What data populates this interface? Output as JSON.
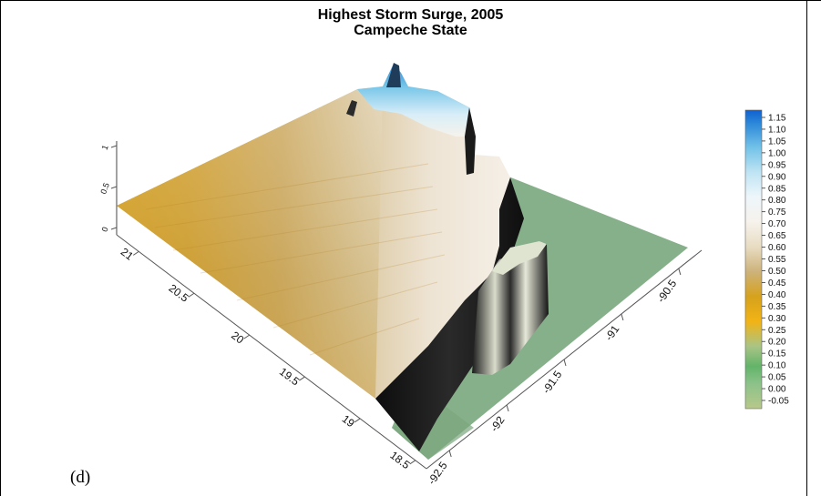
{
  "chart_data": {
    "type": "surface",
    "title": "Highest Storm Surge, 2005",
    "subtitle": "Campeche State",
    "panel_label": "(d)",
    "x_axis": {
      "ticks": [
        "-92.5",
        "-92",
        "-91.5",
        "-91",
        "-90.5"
      ],
      "range": [
        -92.7,
        -90.3
      ]
    },
    "y_axis": {
      "ticks": [
        "18.5",
        "19",
        "19.5",
        "20",
        "20.5",
        "21"
      ],
      "range": [
        18.4,
        21.2
      ]
    },
    "z_axis": {
      "ticks": [
        "0",
        "0.5",
        "1"
      ],
      "range": [
        0,
        1.2
      ]
    },
    "colorbar": {
      "ticks": [
        "1.15",
        "1.10",
        "1.05",
        "1.00",
        "0.95",
        "0.90",
        "0.85",
        "0.80",
        "0.75",
        "0.70",
        "0.65",
        "0.60",
        "0.55",
        "0.50",
        "0.45",
        "0.40",
        "0.35",
        "0.30",
        "0.25",
        "0.20",
        "0.15",
        "0.10",
        "0.05",
        "0.00",
        "-0.05"
      ],
      "range": [
        -0.05,
        1.15
      ],
      "stops": [
        {
          "v": -0.05,
          "color": "#b8c88a"
        },
        {
          "v": 0.05,
          "color": "#8cc28a"
        },
        {
          "v": 0.12,
          "color": "#62b46a"
        },
        {
          "v": 0.2,
          "color": "#a9c486"
        },
        {
          "v": 0.3,
          "color": "#f2b316"
        },
        {
          "v": 0.4,
          "color": "#d6a21c"
        },
        {
          "v": 0.5,
          "color": "#cdb27a"
        },
        {
          "v": 0.6,
          "color": "#e8dcc2"
        },
        {
          "v": 0.7,
          "color": "#f6f2ec"
        },
        {
          "v": 0.8,
          "color": "#eef6fb"
        },
        {
          "v": 0.9,
          "color": "#bfe4f3"
        },
        {
          "v": 1.0,
          "color": "#72c2e8"
        },
        {
          "v": 1.1,
          "color": "#2a86d8"
        },
        {
          "v": 1.15,
          "color": "#1060d0"
        }
      ]
    },
    "colors": {
      "water_plane": "#86b08a",
      "cliff": "#121212",
      "land_low": "#d4a436",
      "land_mid": "#c9b487",
      "land_high": "#f3ede3",
      "peak": "#3b8fd8"
    }
  }
}
